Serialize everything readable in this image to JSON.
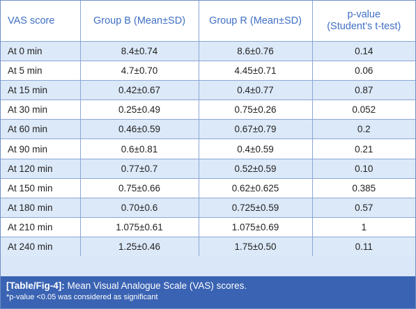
{
  "table": {
    "headers": [
      "VAS score",
      "Group B (Mean±SD)",
      "Group R (Mean±SD)",
      "p-value",
      "(Student’s t-test)"
    ],
    "rows": [
      [
        "At 0 min",
        "8.4±0.74",
        "8.6±0.76",
        "0.14"
      ],
      [
        "At 5 min",
        "4.7±0.70",
        "4.45±0.71",
        "0.06"
      ],
      [
        "At 15 min",
        "0.42±0.67",
        "0.4±0.77",
        "0.87"
      ],
      [
        "At 30 min",
        "0.25±0.49",
        "0.75±0.26",
        "0.052"
      ],
      [
        "At 60 min",
        "0.46±0.59",
        "0.67±0.79",
        "0.2"
      ],
      [
        "At 90 min",
        "0.6±0.81",
        "0.4±0.59",
        "0.21"
      ],
      [
        "At 120 min",
        "0.77±0.7",
        "0.52±0.59",
        "0.10"
      ],
      [
        "At 150 min",
        "0.75±0.66",
        "0.62±0.625",
        "0.385"
      ],
      [
        "At 180 min",
        "0.70±0.6",
        "0.725±0.59",
        "0.57"
      ],
      [
        "At 210 min",
        "1.075±0.61",
        "1.075±0.69",
        "1"
      ],
      [
        "At 240 min",
        "1.25±0.46",
        "1.75±0.50",
        "0.11"
      ]
    ]
  },
  "caption": {
    "tag": "[Table/Fig-4]:",
    "text": " Mean Visual Analogue Scale (VAS) scores.",
    "footnote": "*p-value <0.05 was considered as significant"
  },
  "colors": {
    "header_text": "#3f6fc4",
    "row_tint": "#dce9f9",
    "grid": "#8aa6d6",
    "caption_bg": "#3a63b3"
  }
}
